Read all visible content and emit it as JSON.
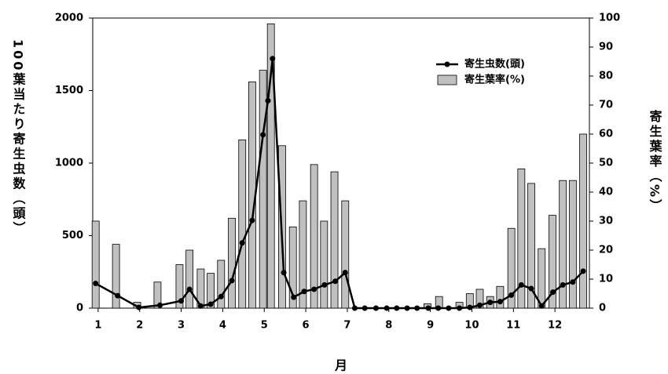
{
  "chart_data": {
    "type": "bar-line",
    "x_label": "月",
    "y_label": "100葉当たり寄生虫数（頭）",
    "y2_label": "寄生葉率（%）",
    "xlim": [
      0.87,
      12.83
    ],
    "xticks": [
      1,
      2,
      3,
      4,
      5,
      6,
      7,
      8,
      9,
      10,
      11,
      12
    ],
    "ylim": [
      0,
      2000
    ],
    "yticks": [
      0,
      500,
      1000,
      1500,
      2000
    ],
    "y2lim": [
      0,
      100
    ],
    "y2ticks": [
      0,
      10,
      20,
      30,
      40,
      50,
      60,
      70,
      80,
      90,
      100
    ],
    "series": [
      {
        "name": "寄生虫数(頭)",
        "type": "line",
        "color": "#000000",
        "axis": "y",
        "x": [
          0.94,
          1.47,
          1.98,
          2.49,
          3.0,
          3.2,
          3.47,
          3.71,
          3.96,
          4.22,
          4.47,
          4.71,
          4.97,
          5.09,
          5.2,
          5.47,
          5.71,
          5.96,
          6.2,
          6.45,
          6.71,
          6.95,
          7.18,
          7.42,
          7.69,
          7.95,
          8.19,
          8.44,
          8.68,
          8.95,
          9.19,
          9.44,
          9.7,
          9.95,
          10.19,
          10.44,
          10.68,
          10.95,
          11.19,
          11.43,
          11.68,
          11.95,
          12.19,
          12.43,
          12.68
        ],
        "values": [
          170,
          86,
          5,
          20,
          50,
          130,
          15,
          27,
          80,
          190,
          450,
          605,
          1195,
          1430,
          1720,
          245,
          75,
          115,
          130,
          160,
          185,
          245,
          0,
          0,
          0,
          0,
          0,
          0,
          0,
          0,
          0,
          0,
          0,
          5,
          20,
          40,
          45,
          90,
          160,
          135,
          15,
          110,
          160,
          180,
          255
        ]
      },
      {
        "name": "寄生葉率(%)",
        "type": "bar",
        "color": "#c0c0c0",
        "axis": "y2",
        "x": [
          0.94,
          1.43,
          1.94,
          2.43,
          2.96,
          3.2,
          3.47,
          3.71,
          3.96,
          4.22,
          4.47,
          4.71,
          4.97,
          5.16,
          5.43,
          5.69,
          5.93,
          6.2,
          6.44,
          6.69,
          6.95,
          8.93,
          9.21,
          9.7,
          9.95,
          10.19,
          10.44,
          10.68,
          10.95,
          11.19,
          11.43,
          11.68,
          11.94,
          12.19,
          12.43,
          12.68
        ],
        "values": [
          30,
          22,
          2,
          9,
          15,
          20,
          13.5,
          12,
          16.5,
          31,
          58,
          78,
          82,
          98,
          56,
          28,
          37,
          49.5,
          30,
          47,
          37,
          1.5,
          4,
          2,
          5,
          6.5,
          4,
          7.5,
          27.5,
          48,
          43,
          20.5,
          32,
          44,
          44,
          60
        ]
      }
    ]
  }
}
